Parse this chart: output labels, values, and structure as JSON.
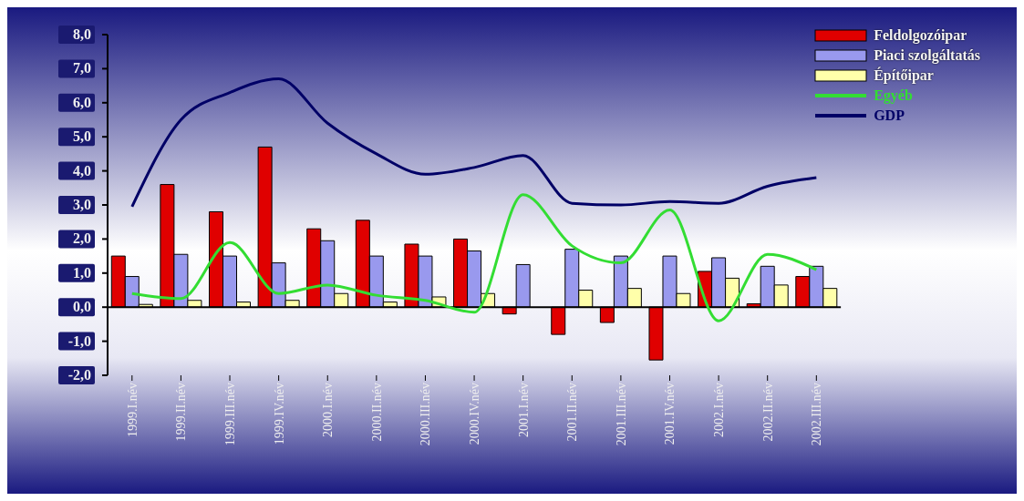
{
  "chart_data": {
    "type": "bar",
    "categories": [
      "1999.I.név",
      "1999.II.név",
      "1999.III.név",
      "1999.IV.név",
      "2000.I.név",
      "2000.II.név",
      "2000.III.név",
      "2000.IV.név",
      "2001.I.név",
      "2001.II.név",
      "2001.III.név",
      "2001.IV.név",
      "2002.I.név",
      "2002.II.név",
      "2002.III.név"
    ],
    "series": [
      {
        "name": "Feldolgozóipar",
        "color": "#e00000",
        "values": [
          1.5,
          3.6,
          2.8,
          4.7,
          2.3,
          2.55,
          1.85,
          2.0,
          -0.2,
          -0.8,
          -0.45,
          -1.55,
          1.05,
          0.1,
          0.9
        ]
      },
      {
        "name": "Piaci szolgáltatás",
        "color": "#9999ee",
        "values": [
          0.9,
          1.55,
          1.5,
          1.3,
          1.95,
          1.5,
          1.5,
          1.65,
          1.25,
          1.7,
          1.5,
          1.5,
          1.45,
          1.2,
          1.2
        ]
      },
      {
        "name": "Építőipar",
        "color": "#ffffaa",
        "values": [
          0.08,
          0.2,
          0.15,
          0.2,
          0.4,
          0.15,
          0.3,
          0.4,
          null,
          0.5,
          0.55,
          0.4,
          0.85,
          0.65,
          0.55
        ]
      },
      {
        "name": "Egyéb",
        "type": "line",
        "color": "#33dd33",
        "values": [
          0.4,
          0.25,
          1.9,
          0.4,
          0.65,
          0.35,
          0.2,
          -0.15,
          3.3,
          1.8,
          1.3,
          2.85,
          -0.4,
          1.55,
          1.1
        ]
      },
      {
        "name": "GDP",
        "type": "line",
        "color": "#000066",
        "values": [
          2.95,
          5.5,
          6.3,
          6.7,
          5.4,
          4.5,
          3.9,
          4.1,
          4.45,
          3.05,
          3.0,
          3.1,
          3.05,
          3.55,
          3.8
        ]
      }
    ],
    "ylim": [
      -2,
      8
    ],
    "yticks": [
      {
        "value": -2,
        "label": "-2,0"
      },
      {
        "value": -1,
        "label": "-1,0"
      },
      {
        "value": 0,
        "label": "0,0"
      },
      {
        "value": 1,
        "label": "1,0"
      },
      {
        "value": 2,
        "label": "2,0"
      },
      {
        "value": 3,
        "label": "3,0"
      },
      {
        "value": 4,
        "label": "4,0"
      },
      {
        "value": 5,
        "label": "5,0"
      },
      {
        "value": 6,
        "label": "6,0"
      },
      {
        "value": 7,
        "label": "7,0"
      },
      {
        "value": 8,
        "label": "8,0"
      }
    ],
    "legend": "top right",
    "marker": "none",
    "line_style": "solid"
  }
}
